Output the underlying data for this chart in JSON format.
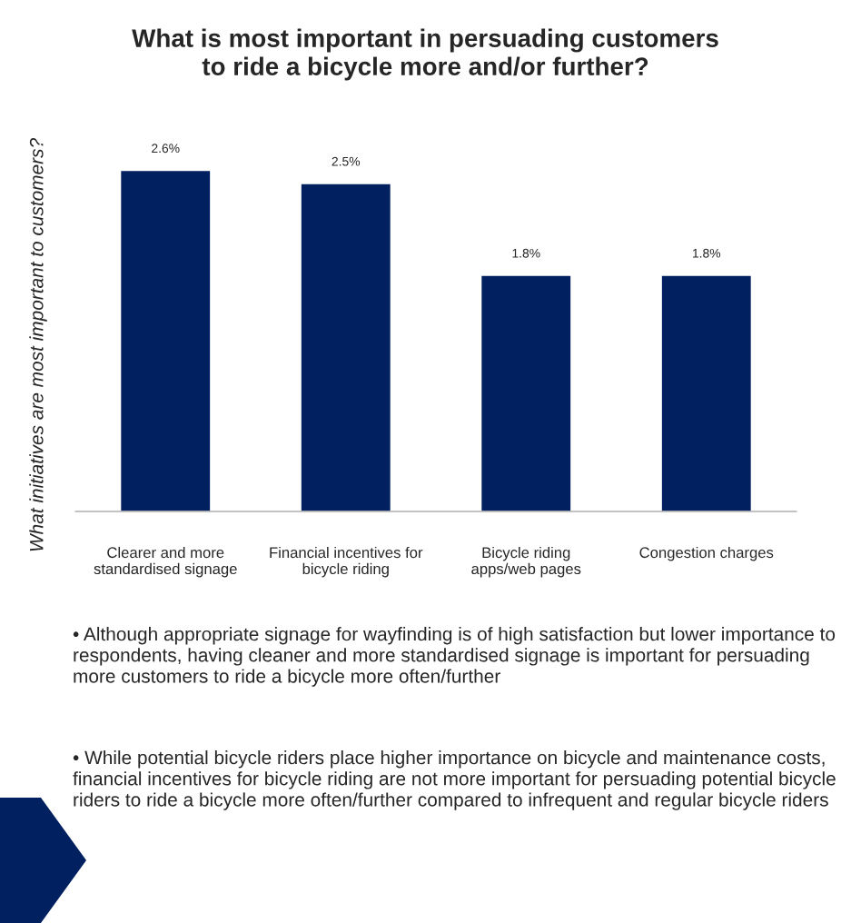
{
  "chart_data": {
    "type": "bar",
    "title": "What is most important in persuading customers\nto ride a bicycle more and/or further?",
    "ylabel": "What initiatives are most important to customers?",
    "categories": [
      "Clearer and more\nstandardised signage",
      "Financial incentives for\nbicycle riding",
      "Bicycle riding\napps/web pages",
      "Congestion charges"
    ],
    "values": [
      2.6,
      2.5,
      1.8,
      1.8
    ],
    "value_labels": [
      "2.6%",
      "2.5%",
      "1.8%",
      "1.8%"
    ],
    "color": "#002060",
    "tick_labels": "x",
    "grid": false,
    "annotations": [
      "• Although appropriate signage for wayfinding is of high satisfaction but lower importance to respondents, having cleaner and more standardised signage is important for persuading more customers to ride a bicycle more often/further",
      "• While potential bicycle riders place higher importance on bicycle and maintenance costs, financial incentives for bicycle riding are not more important for persuading potential bicycle riders to ride a bicycle more often/further compared to infrequent and regular bicycle riders"
    ]
  }
}
